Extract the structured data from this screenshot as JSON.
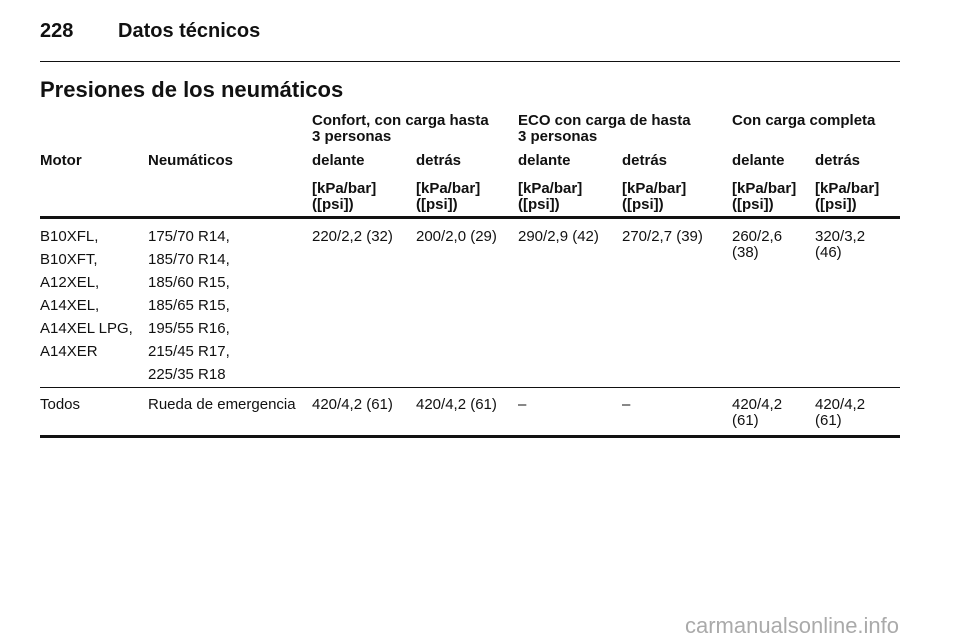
{
  "header": {
    "page_number": "228",
    "title": "Datos técnicos"
  },
  "section_title": "Presiones de los neumáticos",
  "table": {
    "group_headers": [
      "Confort, con carga hasta\n3 personas",
      "ECO con carga de hasta\n3 personas",
      "Con carga completa"
    ],
    "column_headers": [
      "Motor",
      "Neumáticos",
      "delante",
      "detrás",
      "delante",
      "detrás",
      "delante",
      "detrás"
    ],
    "units": [
      "[kPa/bar]\n([psi])",
      "[kPa/bar]\n([psi])",
      "[kPa/bar]\n([psi])",
      "[kPa/bar]\n([psi])",
      "[kPa/bar]\n([psi])",
      "[kPa/bar]\n([psi])"
    ],
    "rows": [
      {
        "motor": [
          "B10XFL,",
          "B10XFT,",
          "A12XEL,",
          "A14XEL,",
          "A14XEL LPG,",
          "A14XER"
        ],
        "tires": [
          "175/70 R14,",
          "185/70 R14,",
          "185/60 R15,",
          "185/65 R15,",
          "195/55 R16,",
          "215/45 R17,",
          "225/35 R18"
        ],
        "values": [
          "220/2,2 (32)",
          "200/2,0 (29)",
          "290/2,9 (42)",
          "270/2,7 (39)",
          "260/2,6\n(38)",
          "320/3,2\n(46)"
        ]
      },
      {
        "motor": [
          "Todos"
        ],
        "tires": [
          "Rueda de emergencia"
        ],
        "values": [
          "420/4,2 (61)",
          "420/4,2 (61)",
          "–",
          "–",
          "420/4,2\n(61)",
          "420/4,2\n(61)"
        ]
      }
    ]
  },
  "watermark": "carmanualsonline.info"
}
